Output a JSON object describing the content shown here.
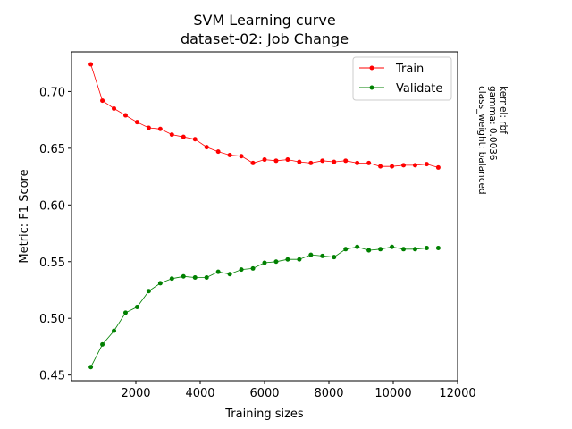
{
  "chart_data": {
    "type": "line",
    "title": "SVM Learning curve",
    "subtitle": "dataset-02: Job Change",
    "xlabel": "Training sizes",
    "ylabel": "Metric: F1 Score",
    "xlim": [
      0,
      12000
    ],
    "ylim": [
      0.445,
      0.735
    ],
    "xticks": [
      2000,
      4000,
      6000,
      8000,
      10000,
      12000
    ],
    "yticks": [
      0.45,
      0.5,
      0.55,
      0.6,
      0.65,
      0.7
    ],
    "ytick_labels": [
      "0.45",
      "0.50",
      "0.55",
      "0.60",
      "0.65",
      "0.70"
    ],
    "legend_position": "top-right",
    "annotation": [
      "kernel: rbf",
      "gamma: 0.0036",
      "class_weight: balanced"
    ],
    "x": [
      600,
      960,
      1320,
      1680,
      2040,
      2400,
      2760,
      3120,
      3480,
      3840,
      4200,
      4560,
      4920,
      5280,
      5640,
      6000,
      6360,
      6720,
      7080,
      7440,
      7800,
      8160,
      8520,
      8880,
      9240,
      9600,
      9960,
      10320,
      10680,
      11040,
      11400
    ],
    "series": [
      {
        "name": "Train",
        "color": "#ff0000",
        "values": [
          0.724,
          0.692,
          0.685,
          0.679,
          0.673,
          0.668,
          0.667,
          0.662,
          0.66,
          0.658,
          0.651,
          0.647,
          0.644,
          0.643,
          0.637,
          0.64,
          0.639,
          0.64,
          0.638,
          0.637,
          0.639,
          0.638,
          0.639,
          0.637,
          0.637,
          0.634,
          0.634,
          0.635,
          0.635,
          0.636,
          0.633
        ]
      },
      {
        "name": "Validate",
        "color": "#008000",
        "values": [
          0.457,
          0.477,
          0.489,
          0.505,
          0.51,
          0.524,
          0.531,
          0.535,
          0.537,
          0.536,
          0.536,
          0.541,
          0.539,
          0.543,
          0.544,
          0.549,
          0.55,
          0.552,
          0.552,
          0.556,
          0.555,
          0.554,
          0.561,
          0.563,
          0.56,
          0.561,
          0.563,
          0.561,
          0.561,
          0.562,
          0.562
        ]
      }
    ]
  }
}
